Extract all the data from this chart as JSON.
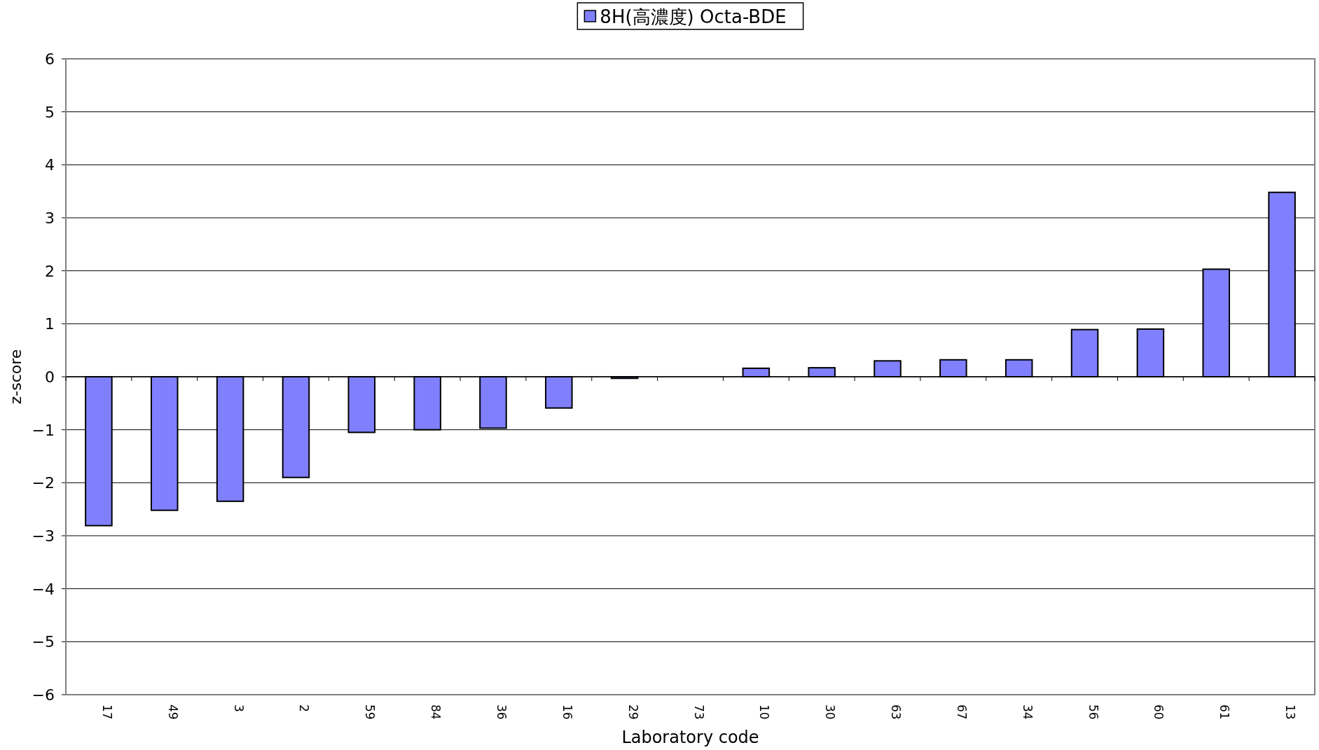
{
  "chart_data": {
    "type": "bar",
    "xlabel": "Laboratory code",
    "ylabel": "z-score",
    "categories": [
      "17",
      "49",
      "3",
      "2",
      "59",
      "84",
      "36",
      "16",
      "29",
      "73",
      "10",
      "30",
      "63",
      "67",
      "34",
      "56",
      "60",
      "61",
      "13"
    ],
    "series": [
      {
        "name": "8H(高濃度) Octa-BDE",
        "color": "#8080ff",
        "values": [
          -2.81,
          -2.52,
          -2.35,
          -1.9,
          -1.05,
          -1.0,
          -0.97,
          -0.59,
          -0.03,
          null,
          0.16,
          0.17,
          0.3,
          0.32,
          0.32,
          0.89,
          0.9,
          2.03,
          3.48
        ]
      }
    ],
    "ylim": [
      -6,
      6
    ],
    "yticks": [
      -6,
      -5,
      -4,
      -3,
      -2,
      -1,
      0,
      1,
      2,
      3,
      4,
      5,
      6
    ],
    "grid": "y",
    "legend": "top"
  }
}
